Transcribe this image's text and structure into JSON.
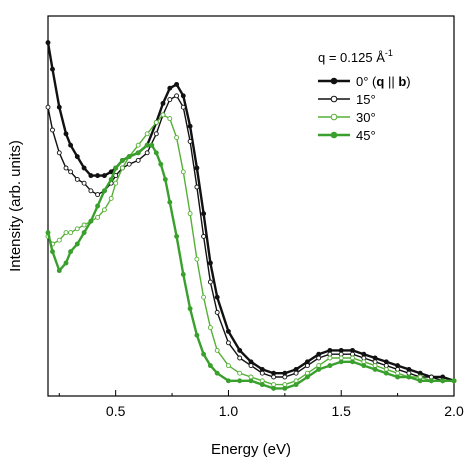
{
  "chart_data": {
    "type": "line",
    "xlabel": "Energy (eV)",
    "ylabel": "Intensity (arb. units)",
    "xlim": [
      0.2,
      2.0
    ],
    "ylim": [
      0,
      1.0
    ],
    "x_ticks": [
      "0.5",
      "1.0",
      "1.5",
      "2.0"
    ],
    "y_ticks_labeled": false,
    "legend": {
      "position": "top-right",
      "title": "q = 0.125 Å⁻¹",
      "title_parts": {
        "prefix": "q = 0.125 Å",
        "superscript": "-1"
      }
    },
    "series": [
      {
        "name": "0° (q || b)",
        "name_parts": {
          "prefix": "0° (",
          "q": "q",
          "mid": " || ",
          "b": "b",
          "suffix": ")"
        },
        "color": "#111111",
        "marker": "filled",
        "bold_line": true,
        "x": [
          0.2,
          0.22,
          0.25,
          0.28,
          0.3,
          0.33,
          0.36,
          0.39,
          0.42,
          0.45,
          0.48,
          0.5,
          0.53,
          0.56,
          0.6,
          0.64,
          0.68,
          0.71,
          0.74,
          0.77,
          0.8,
          0.83,
          0.86,
          0.89,
          0.92,
          0.95,
          1.0,
          1.05,
          1.1,
          1.15,
          1.2,
          1.25,
          1.3,
          1.35,
          1.4,
          1.45,
          1.5,
          1.55,
          1.6,
          1.65,
          1.7,
          1.75,
          1.8,
          1.85,
          1.9,
          1.95,
          2.0
        ],
        "y": [
          0.93,
          0.86,
          0.76,
          0.69,
          0.66,
          0.63,
          0.6,
          0.58,
          0.58,
          0.58,
          0.59,
          0.6,
          0.62,
          0.63,
          0.64,
          0.66,
          0.72,
          0.77,
          0.81,
          0.82,
          0.79,
          0.71,
          0.6,
          0.48,
          0.35,
          0.26,
          0.17,
          0.12,
          0.09,
          0.07,
          0.06,
          0.06,
          0.07,
          0.09,
          0.11,
          0.12,
          0.12,
          0.12,
          0.11,
          0.1,
          0.09,
          0.08,
          0.07,
          0.06,
          0.05,
          0.05,
          0.04
        ]
      },
      {
        "name": "15°",
        "color": "#111111",
        "marker": "open",
        "bold_line": false,
        "x": [
          0.2,
          0.22,
          0.25,
          0.28,
          0.3,
          0.33,
          0.36,
          0.39,
          0.42,
          0.45,
          0.48,
          0.5,
          0.53,
          0.56,
          0.6,
          0.64,
          0.68,
          0.71,
          0.74,
          0.77,
          0.8,
          0.83,
          0.86,
          0.89,
          0.92,
          0.95,
          1.0,
          1.05,
          1.1,
          1.15,
          1.2,
          1.25,
          1.3,
          1.35,
          1.4,
          1.45,
          1.5,
          1.55,
          1.6,
          1.65,
          1.7,
          1.75,
          1.8,
          1.85,
          1.9,
          1.95,
          2.0
        ],
        "y": [
          0.76,
          0.7,
          0.64,
          0.6,
          0.59,
          0.57,
          0.56,
          0.54,
          0.53,
          0.54,
          0.56,
          0.58,
          0.6,
          0.61,
          0.62,
          0.64,
          0.69,
          0.74,
          0.78,
          0.79,
          0.76,
          0.67,
          0.55,
          0.42,
          0.3,
          0.22,
          0.14,
          0.1,
          0.08,
          0.06,
          0.05,
          0.05,
          0.06,
          0.08,
          0.1,
          0.11,
          0.11,
          0.11,
          0.1,
          0.09,
          0.08,
          0.07,
          0.06,
          0.05,
          0.05,
          0.04,
          0.04
        ]
      },
      {
        "name": "30°",
        "color": "#55b036",
        "marker": "open",
        "bold_line": false,
        "x": [
          0.2,
          0.22,
          0.25,
          0.28,
          0.3,
          0.33,
          0.36,
          0.39,
          0.42,
          0.45,
          0.48,
          0.5,
          0.53,
          0.56,
          0.6,
          0.64,
          0.68,
          0.71,
          0.74,
          0.77,
          0.8,
          0.83,
          0.86,
          0.89,
          0.92,
          0.95,
          1.0,
          1.05,
          1.1,
          1.15,
          1.2,
          1.25,
          1.3,
          1.35,
          1.4,
          1.45,
          1.5,
          1.55,
          1.6,
          1.65,
          1.7,
          1.75,
          1.8,
          1.85,
          1.9,
          1.95,
          2.0
        ],
        "y": [
          0.42,
          0.4,
          0.41,
          0.43,
          0.43,
          0.44,
          0.45,
          0.46,
          0.47,
          0.49,
          0.52,
          0.56,
          0.6,
          0.63,
          0.66,
          0.69,
          0.72,
          0.74,
          0.73,
          0.68,
          0.59,
          0.48,
          0.36,
          0.26,
          0.18,
          0.12,
          0.08,
          0.06,
          0.05,
          0.04,
          0.03,
          0.03,
          0.04,
          0.06,
          0.08,
          0.1,
          0.1,
          0.1,
          0.09,
          0.08,
          0.07,
          0.06,
          0.05,
          0.05,
          0.04,
          0.04,
          0.04
        ]
      },
      {
        "name": "45°",
        "color": "#3aa02d",
        "marker": "filled",
        "bold_line": true,
        "x": [
          0.2,
          0.22,
          0.25,
          0.28,
          0.3,
          0.33,
          0.36,
          0.39,
          0.42,
          0.45,
          0.48,
          0.5,
          0.53,
          0.56,
          0.6,
          0.64,
          0.66,
          0.68,
          0.7,
          0.72,
          0.74,
          0.77,
          0.8,
          0.83,
          0.86,
          0.89,
          0.92,
          0.95,
          1.0,
          1.05,
          1.1,
          1.15,
          1.2,
          1.25,
          1.3,
          1.35,
          1.4,
          1.45,
          1.5,
          1.55,
          1.6,
          1.65,
          1.7,
          1.75,
          1.8,
          1.85,
          1.9,
          1.95,
          2.0
        ],
        "y": [
          0.43,
          0.38,
          0.33,
          0.35,
          0.38,
          0.4,
          0.43,
          0.46,
          0.5,
          0.54,
          0.57,
          0.6,
          0.62,
          0.63,
          0.64,
          0.66,
          0.66,
          0.64,
          0.61,
          0.57,
          0.51,
          0.42,
          0.32,
          0.23,
          0.16,
          0.11,
          0.08,
          0.06,
          0.04,
          0.04,
          0.04,
          0.03,
          0.02,
          0.02,
          0.03,
          0.05,
          0.07,
          0.08,
          0.09,
          0.09,
          0.08,
          0.07,
          0.06,
          0.05,
          0.05,
          0.04,
          0.04,
          0.04,
          0.04
        ]
      }
    ]
  }
}
